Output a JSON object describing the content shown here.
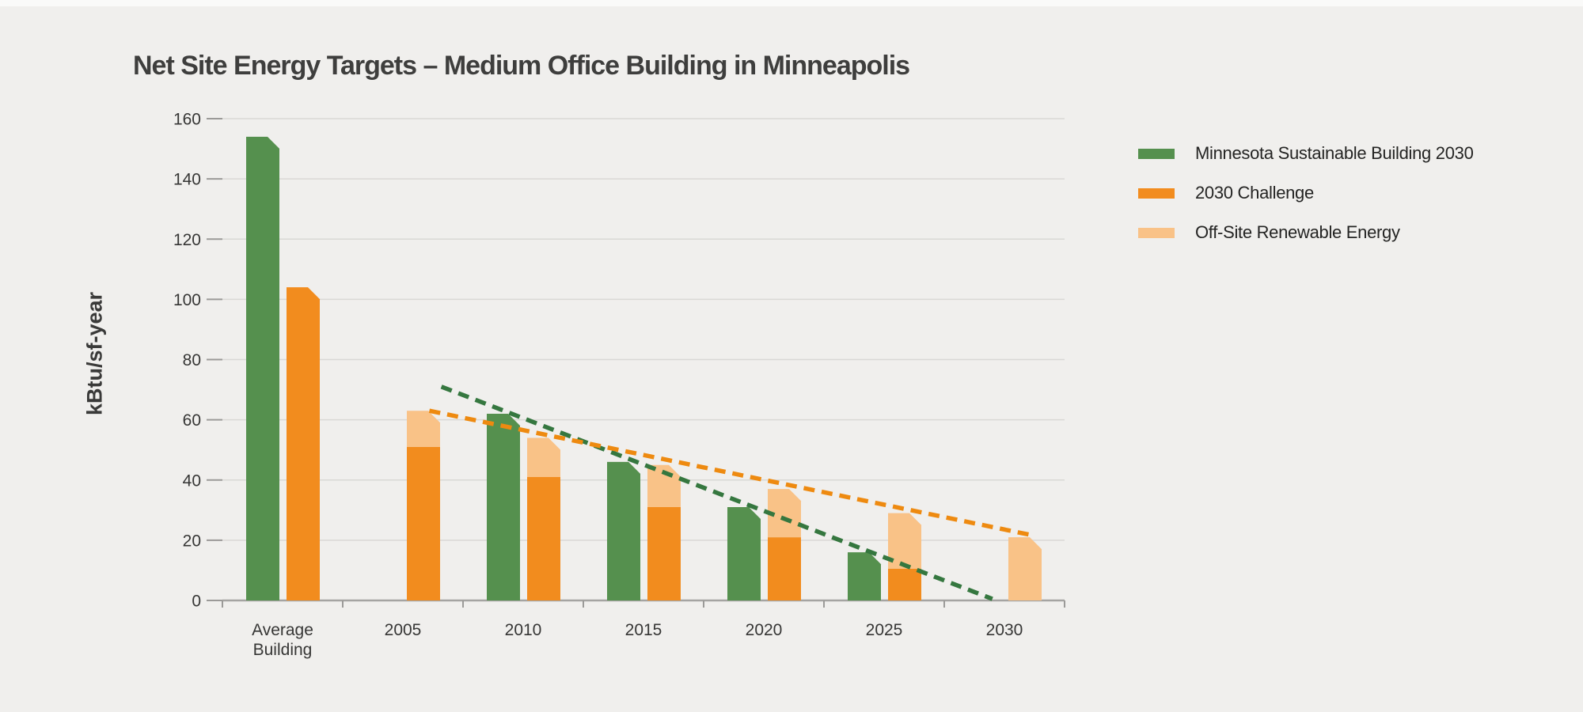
{
  "page": {
    "background_color": "#f0efed"
  },
  "title": "Net Site Energy Targets – Medium Office Building in Minneapolis",
  "y_axis": {
    "title": "kBtu/sf-year",
    "tick_values": [
      0,
      20,
      40,
      60,
      80,
      100,
      120,
      140,
      160
    ],
    "max": 160
  },
  "x_axis": {
    "category_display_lines": [
      [
        "Average",
        "Building"
      ],
      [
        "2005"
      ],
      [
        "2010"
      ],
      [
        "2015"
      ],
      [
        "2020"
      ],
      [
        "2025"
      ],
      [
        "2030"
      ]
    ]
  },
  "legend": {
    "items": [
      {
        "label": "Minnesota Sustainable Building 2030",
        "color": "#55904e"
      },
      {
        "label": "2030 Challenge",
        "color": "#f28c1e"
      },
      {
        "label": "Off-Site Renewable Energy",
        "color": "#f9c287"
      }
    ]
  },
  "colors": {
    "background": "#f0efed",
    "green_bar": "#55904e",
    "orange_bar": "#f28c1e",
    "light_orange_bar": "#f9c287",
    "green_trendline": "#35773f",
    "orange_trendline": "#ee8a10",
    "gridline": "#d9d8d5",
    "axis_line": "#a5a4a2",
    "tick_mark": "#9b9a98",
    "title_text": "#3e3e3d",
    "axis_text": "#363635"
  },
  "chart_data": {
    "type": "bar",
    "title": "Net Site Energy Targets – Medium Office Building in Minneapolis",
    "xlabel": "",
    "ylabel": "kBtu/sf-year",
    "ylim": [
      0,
      160
    ],
    "y_tick_step": 20,
    "grid": "horizontal",
    "legend_position": "right",
    "categories": [
      "Average Building",
      "2005",
      "2010",
      "2015",
      "2020",
      "2025",
      "2030"
    ],
    "series": [
      {
        "name": "Minnesota Sustainable Building 2030",
        "color": "#55904e",
        "role": "left-bar",
        "values": [
          154,
          null,
          62,
          46,
          31,
          16,
          null
        ]
      },
      {
        "name": "2030 Challenge",
        "color": "#f28c1e",
        "role": "right-bar-base",
        "values": [
          104,
          51,
          41,
          31,
          21,
          10.5,
          0
        ]
      },
      {
        "name": "Off-Site Renewable Energy",
        "color": "#f9c287",
        "role": "right-bar-stacked-on-2030-challenge",
        "values": [
          null,
          12,
          13,
          14,
          16,
          18.5,
          21
        ]
      }
    ],
    "stacked_totals_with_renewables": [
      null,
      63,
      54,
      45,
      37,
      29,
      21
    ],
    "trendlines": [
      {
        "name": "Minnesota Sustainable Building 2030 trend",
        "color": "#35773f",
        "style": "dashed",
        "from": {
          "cat_pos": 1.32,
          "value": 71
        },
        "to": {
          "cat_pos": 5.9,
          "value": 0.5
        }
      },
      {
        "name": "2030 Challenge with renewables trend",
        "color": "#ee8a10",
        "style": "dashed",
        "from": {
          "cat_pos": 1.22,
          "value": 63
        },
        "to": {
          "cat_pos": 6.25,
          "value": 21.5
        }
      }
    ],
    "bar_style": {
      "beveled_top_right_corner": true
    }
  }
}
